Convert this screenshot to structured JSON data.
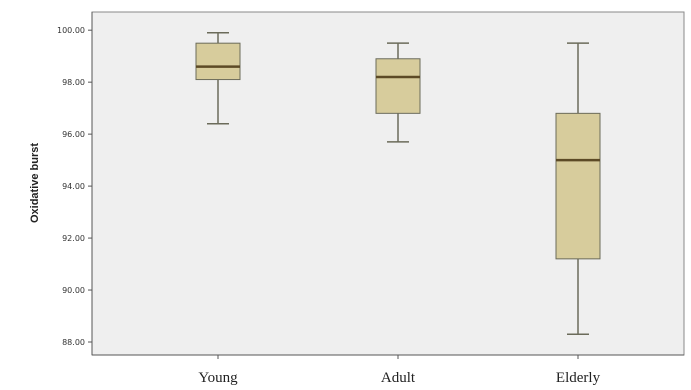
{
  "chart_data": {
    "type": "boxplot",
    "ylabel": "Oxidative burst",
    "ylim": [
      87.5,
      100.7
    ],
    "yticks": [
      88,
      90,
      92,
      94,
      96,
      98,
      100
    ],
    "ytick_labels": [
      "88.00",
      "90.00",
      "92.00",
      "94.00",
      "96.00",
      "98.00",
      "100.00"
    ],
    "categories": [
      "Young",
      "Adult",
      "Elderly"
    ],
    "boxes": [
      {
        "name": "Young",
        "min": 96.4,
        "q1": 98.1,
        "median": 98.6,
        "q3": 99.5,
        "max": 99.9
      },
      {
        "name": "Adult",
        "min": 95.7,
        "q1": 96.8,
        "median": 98.2,
        "q3": 98.9,
        "max": 99.5
      },
      {
        "name": "Elderly",
        "min": 88.3,
        "q1": 91.2,
        "median": 95.0,
        "q3": 96.8,
        "max": 99.5
      }
    ],
    "grid": false,
    "colors": {
      "box_fill": "#d7cc9c",
      "box_stroke": "#6b6b5a",
      "median": "#5c4a26",
      "plot_bg": "#efefef",
      "axis": "#555555"
    }
  }
}
